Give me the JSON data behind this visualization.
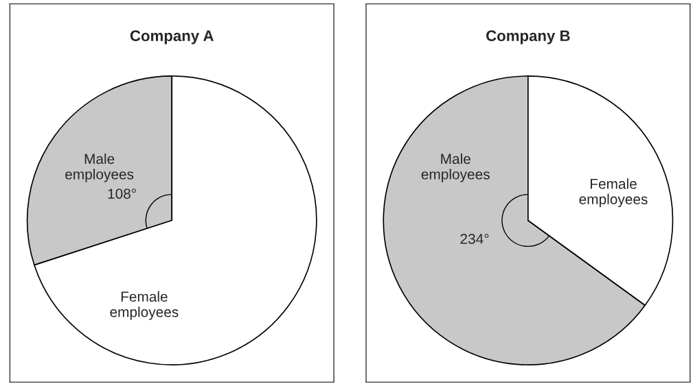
{
  "chart_data": [
    {
      "type": "pie",
      "title": "Company A",
      "categories": [
        "Male employees",
        "Female employees"
      ],
      "values": [
        108,
        252
      ],
      "colors": [
        "#c8c8c8",
        "#ffffff"
      ],
      "value_labels": [
        "108°",
        null
      ]
    },
    {
      "type": "pie",
      "title": "Company B",
      "categories": [
        "Male employees",
        "Female employees"
      ],
      "values": [
        234,
        126
      ],
      "colors": [
        "#c8c8c8",
        "#ffffff"
      ],
      "value_labels": [
        "234°",
        null
      ]
    }
  ]
}
